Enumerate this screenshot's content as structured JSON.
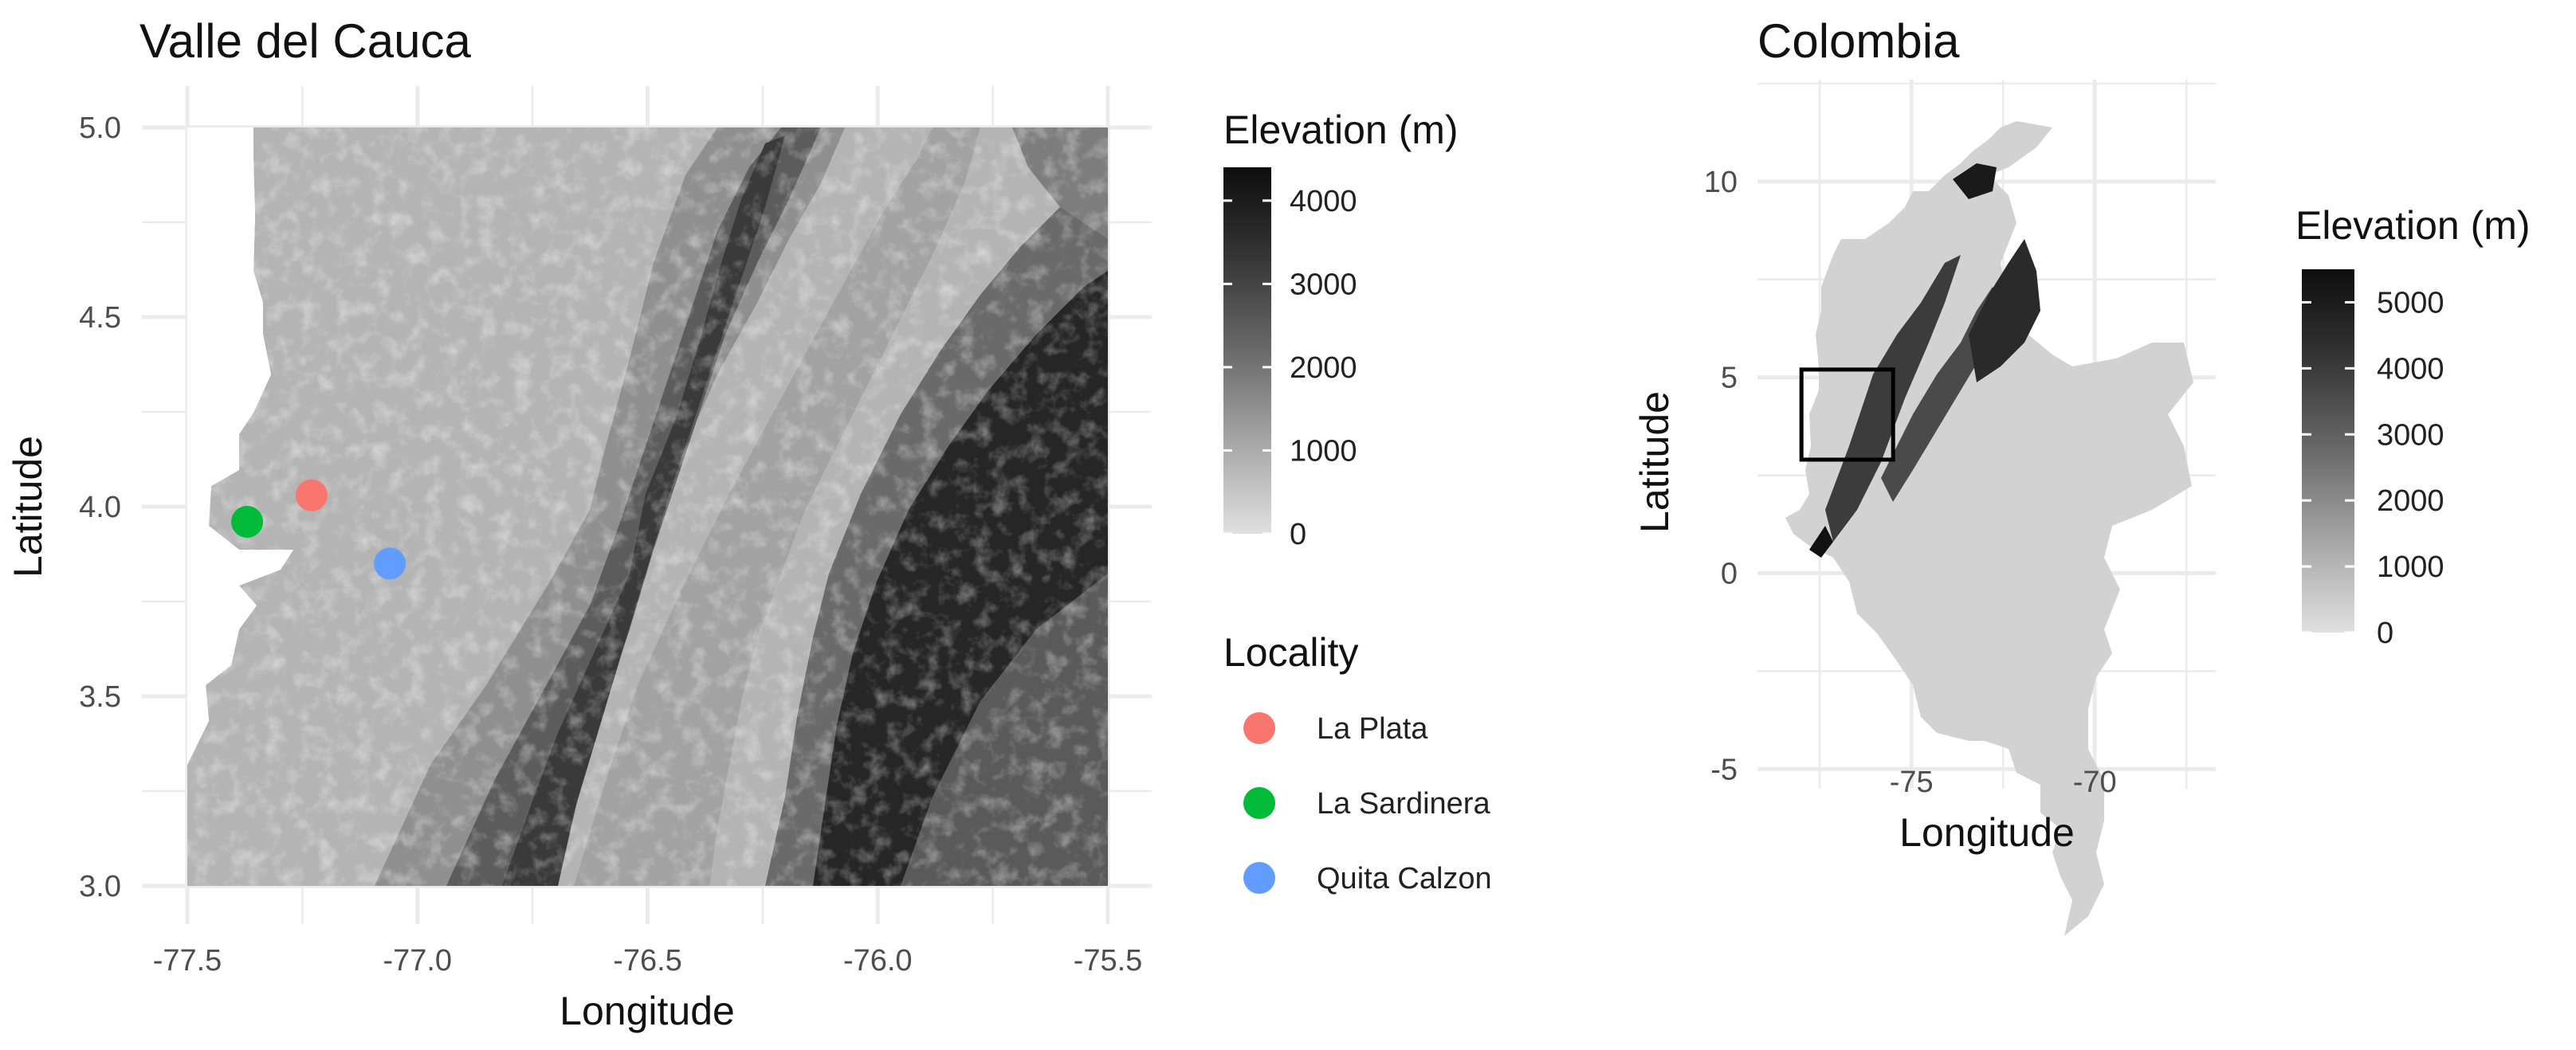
{
  "left_map": {
    "title": "Valle del Cauca",
    "xlabel": "Longitude",
    "ylabel": "Latitude",
    "x_ticks": [
      "-77.5",
      "-77.0",
      "-76.5",
      "-76.0",
      "-75.5"
    ],
    "y_ticks": [
      "5.0",
      "4.5",
      "4.0",
      "3.5",
      "3.0"
    ],
    "xlim": [
      -77.5,
      -75.5
    ],
    "ylim": [
      3.0,
      5.0
    ],
    "localities": [
      {
        "name": "La Plata",
        "lon": -77.23,
        "lat": 4.03,
        "color": "#F8766D"
      },
      {
        "name": "La Sardinera",
        "lon": -77.37,
        "lat": 3.96,
        "color": "#00BA38"
      },
      {
        "name": "Quita Calzon",
        "lon": -77.06,
        "lat": 3.85,
        "color": "#619CFF"
      }
    ],
    "elevation_legend": {
      "title": "Elevation (m)",
      "labels": [
        "4000",
        "3000",
        "2000",
        "1000",
        "0"
      ],
      "values": [
        4000,
        3000,
        2000,
        1000,
        0
      ],
      "max": 4400
    },
    "locality_legend": {
      "title": "Locality",
      "items": [
        "La Plata",
        "La Sardinera",
        "Quita Calzon"
      ]
    }
  },
  "right_map": {
    "title": "Colombia",
    "xlabel": "Longitude",
    "ylabel": "Latitude",
    "x_ticks": [
      "-75",
      "-70"
    ],
    "y_ticks": [
      "10",
      "5",
      "0",
      "-5"
    ],
    "xlim": [
      -79.2,
      -66.7
    ],
    "ylim": [
      -5.5,
      12.6
    ],
    "inset_box": {
      "lon_min": -78.0,
      "lon_max": -75.5,
      "lat_min": 2.9,
      "lat_max": 5.2
    },
    "elevation_legend": {
      "title": "Elevation (m)",
      "labels": [
        "5000",
        "4000",
        "3000",
        "2000",
        "1000",
        "0"
      ],
      "values": [
        5000,
        4000,
        3000,
        2000,
        1000,
        0
      ],
      "max": 5500
    }
  },
  "colors": {
    "grid": "#ebebeb",
    "low_elevation": "#e0e0e0",
    "high_elevation": "#0d0d0d",
    "inset_box": "#000000"
  }
}
